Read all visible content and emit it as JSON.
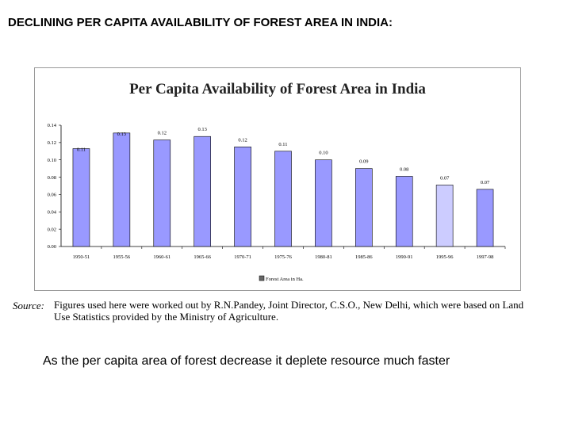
{
  "slide": {
    "title": "DECLINING PER CAPITA AVAILABILITY OF FOREST AREA IN INDIA:",
    "caption": "As the per capita area of forest decrease it deplete resource much faster"
  },
  "source": {
    "label": "Source:",
    "text": "Figures used here were worked out by R.N.Pandey, Joint Director, C.S.O., New Delhi, which were based on Land Use Statistics provided by the Ministry of Agriculture."
  },
  "colors": {
    "bar_fill": "#9999ff",
    "bar_stroke": "#000000",
    "highlight_fill": "#ccccff"
  },
  "chart_data": {
    "type": "bar",
    "title": "Per Capita Availability of Forest Area in India",
    "xlabel": "",
    "ylabel": "",
    "ylim": [
      0,
      0.14
    ],
    "yticks": [
      "0.00",
      "0.02",
      "0.04",
      "0.06",
      "0.08",
      "0.10",
      "0.12",
      "0.14"
    ],
    "categories": [
      "1950-51",
      "1955-56",
      "1960-61",
      "1965-66",
      "1970-71",
      "1975-76",
      "1980-81",
      "1985-86",
      "1990-91",
      "1995-96",
      "1997-98"
    ],
    "values": [
      0.113,
      0.131,
      0.123,
      0.127,
      0.115,
      0.11,
      0.1,
      0.09,
      0.081,
      0.071,
      0.066
    ],
    "data_labels": [
      "0.11",
      "0.13",
      "0.12",
      "0.13",
      "0.12",
      "0.11",
      "0.10",
      "0.09",
      "0.08",
      "0.07",
      "0.07"
    ],
    "legend": "Forest Area in Ha.",
    "legend_position": "bottom",
    "grid": false
  }
}
